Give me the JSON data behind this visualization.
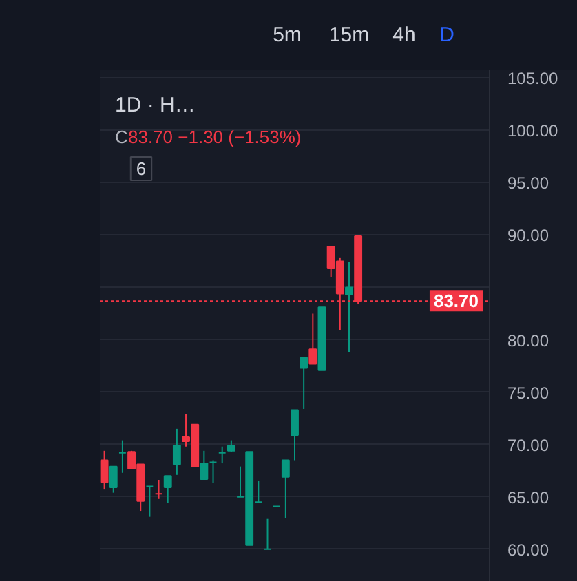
{
  "chart_data": {
    "type": "candlestick",
    "title": "1D · H…",
    "subtitle": "C83.70 −1.30 (−1.53%)",
    "annotations": [
      "5m",
      "15m",
      "4h",
      "D",
      "6"
    ],
    "categories": [
      null,
      null,
      null,
      null,
      null,
      null,
      null,
      null,
      null,
      null,
      null,
      null,
      null,
      null,
      null,
      null,
      null,
      null,
      null,
      null,
      null,
      null,
      null,
      null,
      null,
      null,
      null,
      null,
      null,
      null,
      null,
      null,
      null,
      null,
      null,
      null,
      null,
      null,
      null,
      null,
      null,
      null,
      null
    ],
    "ohlc": [
      [
        68.5,
        69.4,
        65.7,
        66.4
      ],
      [
        65.9,
        67.9,
        65.4,
        67.9
      ],
      [
        69.2,
        70.4,
        67.3,
        69.2
      ],
      [
        69.3,
        69.4,
        67.7,
        67.7
      ],
      [
        68.1,
        68.1,
        63.6,
        64.6
      ],
      [
        66.0,
        66.0,
        63.1,
        66.0
      ],
      [
        65.3,
        66.6,
        64.8,
        65.3
      ],
      [
        65.9,
        67.0,
        64.4,
        67.0
      ],
      [
        68.1,
        71.5,
        67.1,
        69.9
      ],
      [
        70.7,
        72.9,
        69.8,
        70.3
      ],
      [
        71.9,
        71.9,
        67.9,
        67.9
      ],
      [
        66.7,
        69.4,
        66.7,
        68.2
      ],
      [
        68.3,
        68.5,
        66.3,
        68.3
      ],
      [
        69.2,
        69.8,
        68.2,
        69.2
      ],
      [
        69.4,
        70.4,
        69.3,
        69.9
      ],
      [
        65.0,
        67.9,
        65.0,
        65.0
      ],
      [
        60.4,
        69.3,
        60.4,
        69.3
      ],
      [
        64.5,
        66.5,
        64.5,
        64.5
      ],
      [
        60.0,
        62.9,
        60.0,
        60.0
      ],
      [
        64.1,
        64.1,
        64.1,
        64.1
      ],
      [
        66.9,
        68.5,
        63.0,
        68.5
      ],
      [
        70.9,
        73.3,
        68.5,
        73.3
      ],
      [
        77.3,
        78.3,
        73.4,
        78.3
      ],
      [
        79.1,
        82.5,
        77.7,
        77.7
      ],
      [
        77.1,
        83.1,
        77.1,
        83.1
      ],
      [
        88.9,
        88.9,
        86.0,
        86.8
      ],
      [
        87.5,
        87.8,
        80.9,
        84.4
      ],
      [
        84.3,
        87.4,
        78.8,
        85.0
      ],
      [
        89.9,
        89.9,
        83.4,
        83.7
      ],
      null,
      null,
      null,
      null,
      null,
      null,
      null,
      null,
      null,
      null,
      null,
      null,
      null,
      null
    ],
    "colors": [
      "#f23645",
      "#089981",
      "#089981",
      "#f23645",
      "#f23645",
      "#089981",
      "#f23645",
      "#089981",
      "#089981",
      "#f23645",
      "#f23645",
      "#089981",
      "#089981",
      "#089981",
      "#089981",
      "#089981",
      "#089981",
      "#089981",
      "#089981",
      "#089981",
      "#089981",
      "#089981",
      "#089981",
      "#f23645",
      "#089981",
      "#f23645",
      "#f23645",
      "#089981",
      "#f23645",
      null,
      null,
      null,
      null,
      null,
      null,
      null,
      null,
      null,
      null,
      null,
      null,
      null,
      null
    ],
    "ylim": [
      56.9,
      105.8
    ],
    "yticks": [
      {
        "value": 60,
        "label": "60.00"
      },
      {
        "value": 65,
        "label": "65.00"
      },
      {
        "value": 70,
        "label": "70.00"
      },
      {
        "value": 75,
        "label": "75.00"
      },
      {
        "value": 80,
        "label": "80.00"
      },
      {
        "value": 85,
        "label": null
      },
      {
        "value": 90,
        "label": "90.00"
      },
      {
        "value": 95,
        "label": "95.00"
      },
      {
        "value": 100,
        "label": "100.00"
      },
      {
        "value": 105,
        "label": "105.00"
      }
    ],
    "ref_lines": [
      {
        "axis": "y",
        "value": 83.7,
        "label": "83.70",
        "color": "#f23645",
        "line_style": "dotted"
      }
    ],
    "grid": "y",
    "tick_labels": "y"
  }
}
